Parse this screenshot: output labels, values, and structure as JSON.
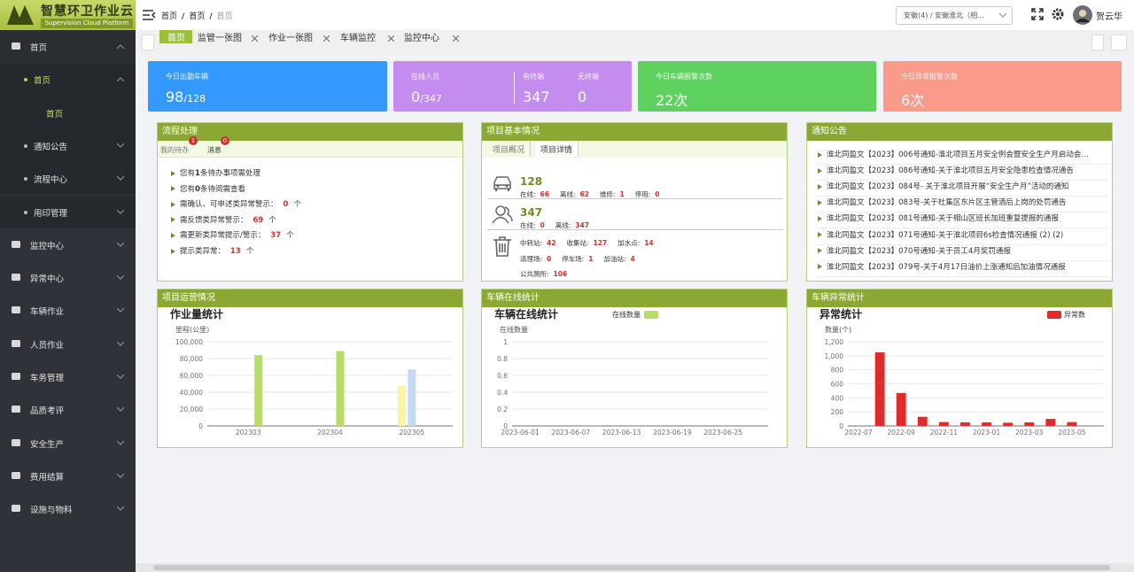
{
  "header": {
    "logo_title": "智慧环卫作业云",
    "logo_subtitle": "Supervision Cloud Platform",
    "breadcrumb": [
      "首页",
      "首页",
      "首页"
    ],
    "separator": "/",
    "region": "安徽(4) / 安徽淮北（相...",
    "user": "贺云华"
  },
  "sidebar": [
    {
      "label": "首页",
      "children": [
        {
          "label": "首页",
          "children": [
            {
              "label": "首页"
            }
          ]
        },
        {
          "label": "通知公告"
        },
        {
          "label": "流程中心"
        },
        {
          "label": "用印管理"
        }
      ]
    },
    {
      "label": "监控中心"
    },
    {
      "label": "异常中心"
    },
    {
      "label": "车辆作业"
    },
    {
      "label": "人员作业"
    },
    {
      "label": "车务管理"
    },
    {
      "label": "品质考评"
    },
    {
      "label": "安全生产"
    },
    {
      "label": "费用结算"
    },
    {
      "label": "设施与物料"
    }
  ],
  "tabs": [
    "首页",
    "监管一张图",
    "作业一张图",
    "车辆监控",
    "监控中心"
  ],
  "cards": [
    {
      "label": "今日出勤车辆",
      "value": 98,
      "separator": "/",
      "total": 128
    },
    {
      "label": "在线人员",
      "value": 0,
      "separator": "/",
      "total": 347,
      "extra": [
        {
          "label": "有终端",
          "value": 347
        },
        {
          "label": "无终端",
          "value": 0
        }
      ]
    },
    {
      "label": "今日车辆报警次数",
      "value": 22,
      "unit": "次"
    },
    {
      "label": "今日异常报警次数",
      "value": 6,
      "unit": "次"
    }
  ],
  "workflow": {
    "title": "流程处理",
    "tabs": [
      {
        "label": "我的待办",
        "badge": 1
      },
      {
        "label": "消息",
        "badge": 0
      }
    ],
    "items": [
      {
        "prefix": "您有",
        "count": 1,
        "suffix": "条待办事项需处理"
      },
      {
        "prefix": "您有",
        "count": 0,
        "suffix": "条待阅需查看"
      },
      {
        "prefix": "需确认、可申述类异常警示：",
        "count": 0,
        "suffix": "个"
      },
      {
        "prefix": "需反馈类异常警示：",
        "count": 69,
        "suffix": "个"
      },
      {
        "prefix": "需更新类异常提示/警示：",
        "count": 37,
        "suffix": "个"
      },
      {
        "prefix": "提示类异常：",
        "count": 13,
        "suffix": "个"
      }
    ]
  },
  "project": {
    "title": "项目基本情况",
    "tabs": [
      "项目概况",
      "项目详情"
    ],
    "vehicles": {
      "total": 128,
      "stats": [
        {
          "label": "在线:",
          "value": 66
        },
        {
          "label": "离线:",
          "value": 62
        },
        {
          "label": "维修:",
          "value": 1
        },
        {
          "label": "停用:",
          "value": 0
        }
      ]
    },
    "people": {
      "total": 347,
      "stats": [
        {
          "label": "在线:",
          "value": 0
        },
        {
          "label": "离线:",
          "value": 347
        }
      ]
    },
    "facilities": [
      {
        "label": "中转站:",
        "value": 42
      },
      {
        "label": "收集站:",
        "value": 127
      },
      {
        "label": "加水点:",
        "value": 14
      },
      {
        "label": "清理场:",
        "value": 0
      },
      {
        "label": "停车场:",
        "value": 1
      },
      {
        "label": "加油站:",
        "value": 4
      },
      {
        "label": "公共厕所:",
        "value": 106
      }
    ]
  },
  "notices": {
    "title": "通知公告",
    "items": [
      "淮北同盈文【2023】006号通知-淮北项目五月安全例会暨安全生产月启动会…",
      "淮北同盈文【2023】086号通知-关于淮北项目五月安全隐患检查情况通告",
      "淮北同盈文【2023】084号- 关于淮北项目开展“安全生产月”活动的通知",
      "淮北同盈文【2023】083号-关于杜集区东片区主管酒后上岗的处罚通告",
      "淮北同盈文【2023】081号通知-关于相山区班长加班重复提报的通报",
      "淮北同盈文【2023】071号通知-关于淮北项目6s检查情况通报 (2) (2)",
      "淮北同盈文【2023】070号通知-关于员工4月奖罚通报",
      "淮北同盈文【2023】079号-关于4月17日油价上涨通知后加油情况通报"
    ]
  },
  "chart_data": [
    {
      "type": "bar",
      "panel_title": "项目运营情况",
      "title": "作业量统计",
      "y_label": "里程(公里)",
      "categories": [
        "202303",
        "202304",
        "202305"
      ],
      "series": [
        {
          "color": "#fdf4a0",
          "values": [
            null,
            null,
            48000
          ]
        },
        {
          "color": "#c5d9f3",
          "values": [
            null,
            null,
            67000
          ]
        },
        {
          "color": "#b6de66",
          "values": [
            84000,
            89000,
            null
          ]
        }
      ],
      "ylim": [
        0,
        100000
      ],
      "yticks": [
        0,
        {
          "value": 20000,
          "label": "20,000"
        },
        {
          "value": 40000,
          "label": "40,000"
        },
        {
          "value": 60000,
          "label": "60,000"
        },
        {
          "value": 80000,
          "label": "80,000"
        },
        {
          "value": 100000,
          "label": "100,000"
        }
      ],
      "grid": true
    },
    {
      "type": "line",
      "panel_title": "车辆在线统计",
      "title": "车辆在线统计",
      "y_label": "在线数量",
      "categories": [
        "2023-06-01",
        "2023-06-07",
        "2023-06-13",
        "2023-06-19",
        "2023-06-25"
      ],
      "series": [
        {
          "name": "在线数量",
          "color": "#b6de66",
          "values": [
            null,
            null,
            null,
            null,
            null
          ]
        }
      ],
      "ylim": [
        0,
        1
      ],
      "yticks": [
        0,
        0.2,
        0.4,
        0.6,
        0.8,
        1
      ],
      "grid": true,
      "legend": "top"
    },
    {
      "type": "bar",
      "panel_title": "车辆异常统计",
      "title": "异常统计",
      "y_label": "数量(个)",
      "categories": [
        "2022-07",
        null,
        "2022-09",
        null,
        "2022-11",
        null,
        "2023-01",
        null,
        "2023-03",
        null,
        "2023-05",
        null
      ],
      "series": [
        {
          "name": "异常数",
          "color": "#e02b2b",
          "values": [
            null,
            1050,
            470,
            130,
            55,
            50,
            50,
            45,
            50,
            100,
            55,
            null
          ]
        }
      ],
      "ylim": [
        0,
        1200
      ],
      "yticks": [
        0,
        200,
        400,
        600,
        800,
        {
          "value": 1000,
          "label": "1,000"
        },
        {
          "value": 1200,
          "label": "1,200"
        }
      ],
      "grid": true,
      "legend": "top-right"
    }
  ]
}
